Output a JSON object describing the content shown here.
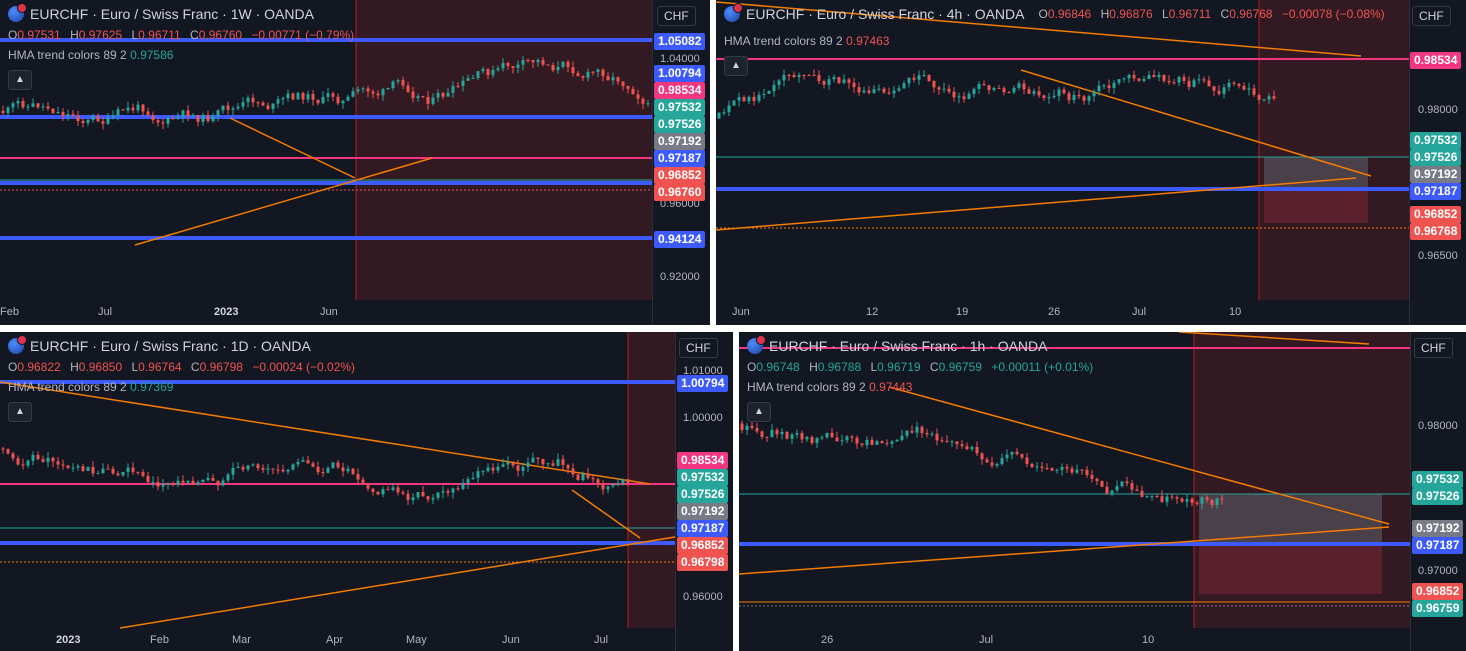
{
  "colors": {
    "background": "#131722",
    "up": "#26a69a",
    "down": "#ef5350",
    "blue_line": "#3d5afe",
    "pink_line": "#f23680",
    "orange_line": "#f57c00",
    "hma": "#c62828"
  },
  "panels": [
    {
      "title": "EURCHF · Euro / Swiss Franc · 1W · OANDA",
      "currency": "CHF",
      "ohlc": {
        "o": "0.97531",
        "h": "0.97625",
        "l": "0.96711",
        "c": "0.96760",
        "chg": "−0.00771 (−0.79%)",
        "chg_color": "#ef5350"
      },
      "indicator": {
        "label": "HMA trend colors 89 2",
        "value": "0.97586",
        "value_color": "#26a69a"
      },
      "price_ticks": [
        "1.04000",
        "0.96000",
        "0.92000"
      ],
      "price_labels": [
        {
          "text": "1.05082",
          "color": "#3d5afe"
        },
        {
          "text": "1.00794",
          "color": "#3d5afe"
        },
        {
          "text": "0.98534",
          "color": "#f23680"
        },
        {
          "text": "0.97532",
          "color": "#26a69a"
        },
        {
          "text": "0.97526",
          "color": "#26a69a"
        },
        {
          "text": "0.97192",
          "color": "#787b86"
        },
        {
          "text": "0.97187",
          "color": "#3d5afe"
        },
        {
          "text": "0.96852",
          "color": "#ef5350"
        },
        {
          "text": "0.96760",
          "color": "#ef5350"
        },
        {
          "text": "0.94124",
          "color": "#3d5afe"
        }
      ],
      "time_ticks": [
        "Feb",
        "Jul",
        "2023",
        "Jun"
      ]
    },
    {
      "title": "EURCHF · Euro / Swiss Franc · 4h · OANDA",
      "currency": "CHF",
      "ohlc": {
        "o": "0.96846",
        "h": "0.96876",
        "l": "0.96711",
        "c": "0.96768",
        "chg": "−0.00078 (−0.08%)",
        "chg_color": "#ef5350"
      },
      "indicator": {
        "label": "HMA trend colors 89 2",
        "value": "0.97463",
        "value_color": "#ef5350"
      },
      "price_ticks": [
        "0.98000",
        "0.96500"
      ],
      "price_labels": [
        {
          "text": "0.98534",
          "color": "#f23680"
        },
        {
          "text": "0.97532",
          "color": "#26a69a"
        },
        {
          "text": "0.97526",
          "color": "#26a69a"
        },
        {
          "text": "0.97192",
          "color": "#787b86"
        },
        {
          "text": "0.97187",
          "color": "#3d5afe"
        },
        {
          "text": "0.96852",
          "color": "#ef5350"
        },
        {
          "text": "0.96768",
          "color": "#ef5350"
        }
      ],
      "time_ticks": [
        "Jun",
        "12",
        "19",
        "26",
        "Jul",
        "10"
      ]
    },
    {
      "title": "EURCHF · Euro / Swiss Franc · 1D · OANDA",
      "currency": "CHF",
      "ohlc": {
        "o": "0.96822",
        "h": "0.96850",
        "l": "0.96764",
        "c": "0.96798",
        "chg": "−0.00024 (−0.02%)",
        "chg_color": "#ef5350"
      },
      "indicator": {
        "label": "HMA trend colors 89 2",
        "value": "0.97369",
        "value_color": "#26a69a"
      },
      "price_ticks": [
        "1.01000",
        "1.00000",
        "0.96000"
      ],
      "price_labels": [
        {
          "text": "1.00794",
          "color": "#3d5afe"
        },
        {
          "text": "0.98534",
          "color": "#f23680"
        },
        {
          "text": "0.97532",
          "color": "#26a69a"
        },
        {
          "text": "0.97526",
          "color": "#26a69a"
        },
        {
          "text": "0.97192",
          "color": "#787b86"
        },
        {
          "text": "0.97187",
          "color": "#3d5afe"
        },
        {
          "text": "0.96852",
          "color": "#ef5350"
        },
        {
          "text": "0.96798",
          "color": "#ef5350"
        }
      ],
      "time_ticks": [
        "2023",
        "Feb",
        "Mar",
        "Apr",
        "May",
        "Jun",
        "Jul"
      ]
    },
    {
      "title": "EURCHF · Euro / Swiss Franc · 1h · OANDA",
      "currency": "CHF",
      "ohlc": {
        "o": "0.96748",
        "h": "0.96788",
        "l": "0.96719",
        "c": "0.96759",
        "chg": "+0.00011 (+0.01%)",
        "chg_color": "#26a69a"
      },
      "indicator": {
        "label": "HMA trend colors 89 2",
        "value": "0.97443",
        "value_color": "#ef5350"
      },
      "price_ticks": [
        "0.98000",
        "0.97000"
      ],
      "price_labels": [
        {
          "text": "0.97532",
          "color": "#26a69a"
        },
        {
          "text": "0.97526",
          "color": "#26a69a"
        },
        {
          "text": "0.97192",
          "color": "#787b86"
        },
        {
          "text": "0.97187",
          "color": "#3d5afe"
        },
        {
          "text": "0.96852",
          "color": "#ef5350"
        },
        {
          "text": "0.96759",
          "color": "#26a69a"
        }
      ],
      "time_ticks": [
        "26",
        "Jul",
        "10"
      ]
    }
  ]
}
